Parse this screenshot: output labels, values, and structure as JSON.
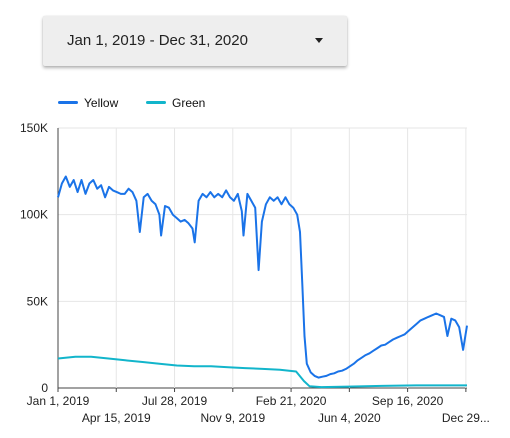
{
  "date_range": {
    "label": "Jan 1, 2019 - Dec 31, 2020",
    "dropdown_icon": "caret-down-icon"
  },
  "colors": {
    "yellow": "#1a73e8",
    "green": "#12b5cb",
    "grid": "#e6e6e6",
    "axis": "#444444"
  },
  "chart_data": {
    "type": "line",
    "title": "",
    "xlabel": "",
    "ylabel": "",
    "legend_position": "top-left",
    "grid": true,
    "x_range": [
      "2019-01-01",
      "2020-12-31"
    ],
    "ylim": [
      0,
      150000
    ],
    "y_ticks": [
      0,
      50000,
      100000,
      150000
    ],
    "y_tick_labels": [
      "0",
      "50K",
      "100K",
      "150K"
    ],
    "x_ticks": [
      {
        "date": "2019-01-01",
        "label": "Jan 1, 2019",
        "row": 0
      },
      {
        "date": "2019-04-15",
        "label": "Apr 15, 2019",
        "row": 1
      },
      {
        "date": "2019-07-28",
        "label": "Jul 28, 2019",
        "row": 0
      },
      {
        "date": "2019-11-09",
        "label": "Nov 9, 2019",
        "row": 1
      },
      {
        "date": "2020-02-21",
        "label": "Feb 21, 2020",
        "row": 0
      },
      {
        "date": "2020-06-04",
        "label": "Jun 4, 2020",
        "row": 1
      },
      {
        "date": "2020-09-16",
        "label": "Sep 16, 2020",
        "row": 0
      },
      {
        "date": "2020-12-29",
        "label": "Dec 29...",
        "row": 1
      }
    ],
    "series": [
      {
        "name": "Yellow",
        "color": "#1a73e8",
        "points": [
          [
            "2019-01-01",
            110000
          ],
          [
            "2019-01-08",
            118000
          ],
          [
            "2019-01-15",
            122000
          ],
          [
            "2019-01-22",
            116000
          ],
          [
            "2019-01-29",
            120000
          ],
          [
            "2019-02-05",
            113000
          ],
          [
            "2019-02-12",
            120000
          ],
          [
            "2019-02-19",
            112000
          ],
          [
            "2019-02-26",
            118000
          ],
          [
            "2019-03-05",
            120000
          ],
          [
            "2019-03-12",
            115000
          ],
          [
            "2019-03-19",
            117000
          ],
          [
            "2019-03-26",
            110000
          ],
          [
            "2019-04-02",
            116000
          ],
          [
            "2019-04-09",
            114000
          ],
          [
            "2019-04-16",
            113000
          ],
          [
            "2019-04-23",
            112000
          ],
          [
            "2019-04-30",
            112000
          ],
          [
            "2019-05-07",
            115000
          ],
          [
            "2019-05-14",
            113000
          ],
          [
            "2019-05-21",
            108000
          ],
          [
            "2019-05-27",
            90000
          ],
          [
            "2019-06-03",
            110000
          ],
          [
            "2019-06-10",
            112000
          ],
          [
            "2019-06-17",
            108000
          ],
          [
            "2019-06-24",
            106000
          ],
          [
            "2019-07-01",
            100000
          ],
          [
            "2019-07-04",
            88000
          ],
          [
            "2019-07-11",
            105000
          ],
          [
            "2019-07-18",
            104000
          ],
          [
            "2019-07-25",
            100000
          ],
          [
            "2019-08-01",
            98000
          ],
          [
            "2019-08-08",
            96000
          ],
          [
            "2019-08-15",
            97000
          ],
          [
            "2019-08-22",
            95000
          ],
          [
            "2019-08-29",
            92000
          ],
          [
            "2019-09-02",
            84000
          ],
          [
            "2019-09-09",
            108000
          ],
          [
            "2019-09-16",
            112000
          ],
          [
            "2019-09-23",
            110000
          ],
          [
            "2019-09-30",
            113000
          ],
          [
            "2019-10-07",
            110000
          ],
          [
            "2019-10-14",
            112000
          ],
          [
            "2019-10-21",
            110000
          ],
          [
            "2019-10-28",
            114000
          ],
          [
            "2019-11-04",
            110000
          ],
          [
            "2019-11-11",
            108000
          ],
          [
            "2019-11-18",
            112000
          ],
          [
            "2019-11-25",
            102000
          ],
          [
            "2019-11-28",
            88000
          ],
          [
            "2019-12-05",
            112000
          ],
          [
            "2019-12-12",
            108000
          ],
          [
            "2019-12-19",
            104000
          ],
          [
            "2019-12-25",
            68000
          ],
          [
            "2019-12-31",
            96000
          ],
          [
            "2020-01-07",
            106000
          ],
          [
            "2020-01-14",
            110000
          ],
          [
            "2020-01-21",
            108000
          ],
          [
            "2020-01-28",
            110000
          ],
          [
            "2020-02-04",
            106000
          ],
          [
            "2020-02-11",
            110000
          ],
          [
            "2020-02-18",
            106000
          ],
          [
            "2020-02-25",
            104000
          ],
          [
            "2020-03-03",
            100000
          ],
          [
            "2020-03-08",
            90000
          ],
          [
            "2020-03-12",
            60000
          ],
          [
            "2020-03-16",
            30000
          ],
          [
            "2020-03-20",
            14000
          ],
          [
            "2020-03-27",
            9000
          ],
          [
            "2020-04-03",
            7000
          ],
          [
            "2020-04-10",
            6000
          ],
          [
            "2020-04-17",
            6500
          ],
          [
            "2020-04-24",
            7000
          ],
          [
            "2020-05-01",
            8000
          ],
          [
            "2020-05-08",
            8500
          ],
          [
            "2020-05-15",
            9500
          ],
          [
            "2020-05-22",
            10000
          ],
          [
            "2020-05-29",
            11000
          ],
          [
            "2020-06-05",
            12500
          ],
          [
            "2020-06-12",
            14000
          ],
          [
            "2020-06-19",
            16000
          ],
          [
            "2020-06-26",
            17500
          ],
          [
            "2020-07-03",
            19000
          ],
          [
            "2020-07-10",
            20000
          ],
          [
            "2020-07-17",
            21500
          ],
          [
            "2020-07-24",
            23000
          ],
          [
            "2020-07-31",
            24500
          ],
          [
            "2020-08-07",
            25000
          ],
          [
            "2020-08-14",
            26500
          ],
          [
            "2020-08-21",
            28000
          ],
          [
            "2020-08-28",
            29000
          ],
          [
            "2020-09-04",
            30000
          ],
          [
            "2020-09-11",
            31000
          ],
          [
            "2020-09-18",
            33000
          ],
          [
            "2020-09-25",
            35000
          ],
          [
            "2020-10-02",
            37000
          ],
          [
            "2020-10-09",
            39000
          ],
          [
            "2020-10-16",
            40000
          ],
          [
            "2020-10-23",
            41000
          ],
          [
            "2020-10-30",
            42000
          ],
          [
            "2020-11-06",
            43000
          ],
          [
            "2020-11-13",
            42000
          ],
          [
            "2020-11-20",
            41000
          ],
          [
            "2020-11-26",
            30000
          ],
          [
            "2020-12-03",
            40000
          ],
          [
            "2020-12-10",
            39000
          ],
          [
            "2020-12-17",
            35000
          ],
          [
            "2020-12-24",
            22000
          ],
          [
            "2020-12-31",
            36000
          ]
        ]
      },
      {
        "name": "Green",
        "color": "#12b5cb",
        "points": [
          [
            "2019-01-01",
            17000
          ],
          [
            "2019-02-01",
            18000
          ],
          [
            "2019-03-01",
            18000
          ],
          [
            "2019-04-01",
            17000
          ],
          [
            "2019-05-01",
            16000
          ],
          [
            "2019-06-01",
            15000
          ],
          [
            "2019-07-01",
            14000
          ],
          [
            "2019-08-01",
            13000
          ],
          [
            "2019-09-01",
            12500
          ],
          [
            "2019-10-01",
            12500
          ],
          [
            "2019-11-01",
            12000
          ],
          [
            "2019-12-01",
            11500
          ],
          [
            "2020-01-01",
            11000
          ],
          [
            "2020-02-01",
            10500
          ],
          [
            "2020-03-01",
            9500
          ],
          [
            "2020-03-15",
            4000
          ],
          [
            "2020-03-25",
            1000
          ],
          [
            "2020-04-15",
            500
          ],
          [
            "2020-06-01",
            800
          ],
          [
            "2020-08-01",
            1200
          ],
          [
            "2020-10-01",
            1500
          ],
          [
            "2020-12-31",
            1500
          ]
        ]
      }
    ]
  }
}
